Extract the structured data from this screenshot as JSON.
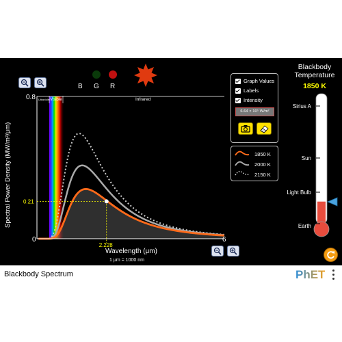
{
  "graph": {
    "y_axis_title": "Spectral Power Density (MW/m²/μm)",
    "x_axis_title": "Wavelength (μm)",
    "unit_note": "1 μm  =  1000 nm",
    "y_max_label": "0.8",
    "y_zero_label": "0",
    "x_max_label": "6",
    "band_ultraviolet": "Ultraviolet",
    "band_visible": "Visible",
    "band_infrared": "Infrared",
    "marker_y_value": "0.21",
    "marker_x_value": "2.228",
    "y_max": 0.8,
    "x_max": 6
  },
  "rgb": {
    "b": "B",
    "g": "G",
    "r": "R"
  },
  "options": {
    "graph_values_label": "Graph Values",
    "labels_label": "Labels",
    "intensity_label": "Intensity",
    "intensity_value": "6.64 × 10⁵ W/m²",
    "graph_values_checked": true,
    "labels_checked": true,
    "intensity_checked": true
  },
  "legend": {
    "items": [
      {
        "label": "1850 K",
        "color": "#ff6a1a",
        "style": "solid"
      },
      {
        "label": "2000 K",
        "color": "#aaaaaa",
        "style": "solid"
      },
      {
        "label": "2150 K",
        "color": "#cccccc",
        "style": "dotted"
      }
    ]
  },
  "thermometer": {
    "title_line1": "Blackbody",
    "title_line2": "Temperature",
    "temperature": "1850 K",
    "level_fraction": 0.17,
    "marks": [
      {
        "label": "Sirius A"
      },
      {
        "label": "Sun"
      },
      {
        "label": "Light Bulb"
      },
      {
        "label": "Earth"
      }
    ]
  },
  "navbar": {
    "title": "Blackbody Spectrum",
    "logo": "PhET"
  },
  "colors": {
    "accent_yellow": "#ffff00",
    "curve_current": "#ff6a1a",
    "curve_saved": "#aaaaaa",
    "thermometer_fluid": "#e84c3d",
    "slider_arrow": "#4aa3df"
  }
}
